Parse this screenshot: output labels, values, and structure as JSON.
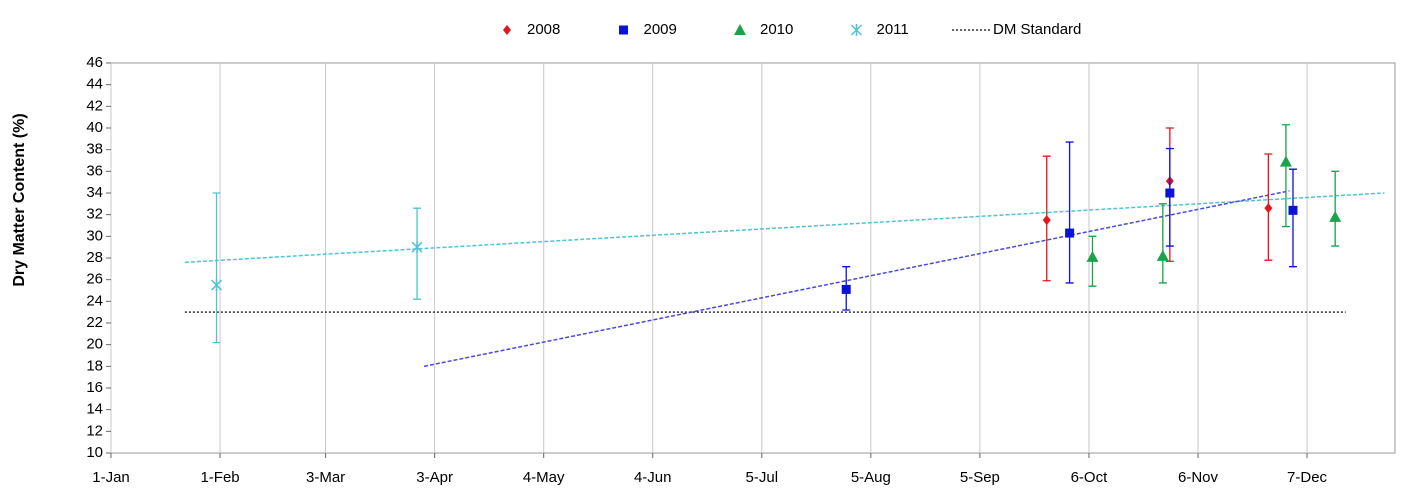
{
  "chart_data": {
    "type": "scatter",
    "y_label": "Dry Matter Content (%)",
    "xlim": [
      0,
      365
    ],
    "xticks": [
      {
        "value": 0,
        "label": "1-Jan"
      },
      {
        "value": 31,
        "label": "1-Feb"
      },
      {
        "value": 61,
        "label": "3-Mar"
      },
      {
        "value": 92,
        "label": "3-Apr"
      },
      {
        "value": 123,
        "label": "4-May"
      },
      {
        "value": 154,
        "label": "4-Jun"
      },
      {
        "value": 185,
        "label": "5-Jul"
      },
      {
        "value": 216,
        "label": "5-Aug"
      },
      {
        "value": 247,
        "label": "5-Sep"
      },
      {
        "value": 278,
        "label": "6-Oct"
      },
      {
        "value": 309,
        "label": "6-Nov"
      },
      {
        "value": 340,
        "label": "7-Dec"
      }
    ],
    "ylim": [
      10,
      46
    ],
    "yticks": [
      10,
      12,
      14,
      16,
      18,
      20,
      22,
      24,
      26,
      28,
      30,
      32,
      34,
      36,
      38,
      40,
      42,
      44,
      46
    ],
    "grid": "x",
    "legend": "top",
    "series": [
      {
        "name": "2008",
        "color": "#e8141b",
        "marker": "diamond",
        "x": [
          266,
          301,
          329
        ],
        "values": [
          31.5,
          35.1,
          32.6
        ],
        "err_minus": [
          5.6,
          7.4,
          4.8
        ],
        "err_plus": [
          5.9,
          4.9,
          5.0
        ]
      },
      {
        "name": "2009",
        "color": "#0a14d8",
        "marker": "square",
        "x": [
          209,
          272.5,
          301,
          336
        ],
        "values": [
          25.1,
          30.3,
          34.0,
          32.4
        ],
        "err_minus": [
          1.9,
          4.6,
          4.9,
          5.2
        ],
        "err_plus": [
          2.1,
          8.4,
          4.1,
          3.8
        ]
      },
      {
        "name": "2010",
        "color": "#19a34a",
        "marker": "triangle",
        "x": [
          279,
          299,
          334,
          348
        ],
        "values": [
          28.1,
          28.2,
          36.9,
          31.8
        ],
        "err_minus": [
          2.7,
          2.5,
          6.0,
          2.7
        ],
        "err_plus": [
          1.9,
          4.8,
          3.4,
          4.2
        ]
      },
      {
        "name": "2011",
        "color": "#4fc3d6",
        "marker": "x",
        "x": [
          30,
          87
        ],
        "values": [
          25.5,
          29.0
        ],
        "err_minus": [
          5.3,
          4.8
        ],
        "err_plus": [
          8.5,
          3.6
        ]
      }
    ],
    "trendlines": [
      {
        "color": "#4fc3d6",
        "x": [
          21,
          362
        ],
        "values": [
          27.6,
          34.0
        ]
      },
      {
        "color": "#4a4ad8",
        "x": [
          89,
          335
        ],
        "values": [
          18.0,
          34.2
        ]
      }
    ],
    "reference": {
      "name": "DM Standard",
      "color": "#333333",
      "x": [
        21,
        351
      ],
      "value": 23
    }
  }
}
